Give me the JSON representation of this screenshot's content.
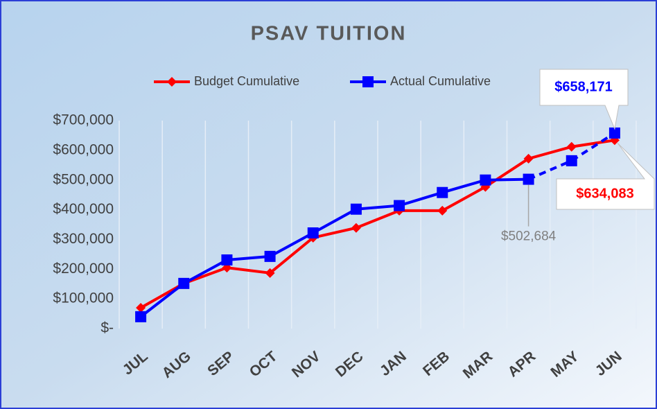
{
  "chart_data": {
    "type": "line",
    "title": "PSAV TUITION",
    "categories": [
      "JUL",
      "AUG",
      "SEP",
      "OCT",
      "NOV",
      "DEC",
      "JAN",
      "FEB",
      "MAR",
      "APR",
      "MAY",
      "JUN"
    ],
    "series": [
      {
        "name": "Budget Cumulative",
        "color": "#ff0000",
        "marker": "diamond",
        "values": [
          70000,
          152000,
          205000,
          187000,
          306000,
          339000,
          397000,
          397000,
          477000,
          572000,
          612000,
          634083
        ],
        "value_labels": [
          null,
          null,
          null,
          null,
          null,
          null,
          null,
          null,
          null,
          null,
          null,
          "$634,083"
        ]
      },
      {
        "name": "Actual Cumulative",
        "color": "#0000ff",
        "marker": "square",
        "dash_from_index": 9,
        "values": [
          40000,
          152000,
          231000,
          243000,
          322000,
          402000,
          414000,
          458000,
          500000,
          502684,
          565000,
          658171
        ],
        "value_labels": [
          null,
          null,
          null,
          null,
          null,
          null,
          null,
          null,
          null,
          "$502,684",
          null,
          "$658,171"
        ]
      }
    ],
    "ylim": [
      0,
      700000
    ],
    "yticks": [
      {
        "value": 0,
        "label": "$-"
      },
      {
        "value": 100000,
        "label": "$100,000"
      },
      {
        "value": 200000,
        "label": "$200,000"
      },
      {
        "value": 300000,
        "label": "$300,000"
      },
      {
        "value": 400000,
        "label": "$400,000"
      },
      {
        "value": 500000,
        "label": "$500,000"
      },
      {
        "value": 600000,
        "label": "$600,000"
      },
      {
        "value": 700000,
        "label": "$700,000"
      }
    ],
    "grid": true,
    "legend": "top"
  }
}
